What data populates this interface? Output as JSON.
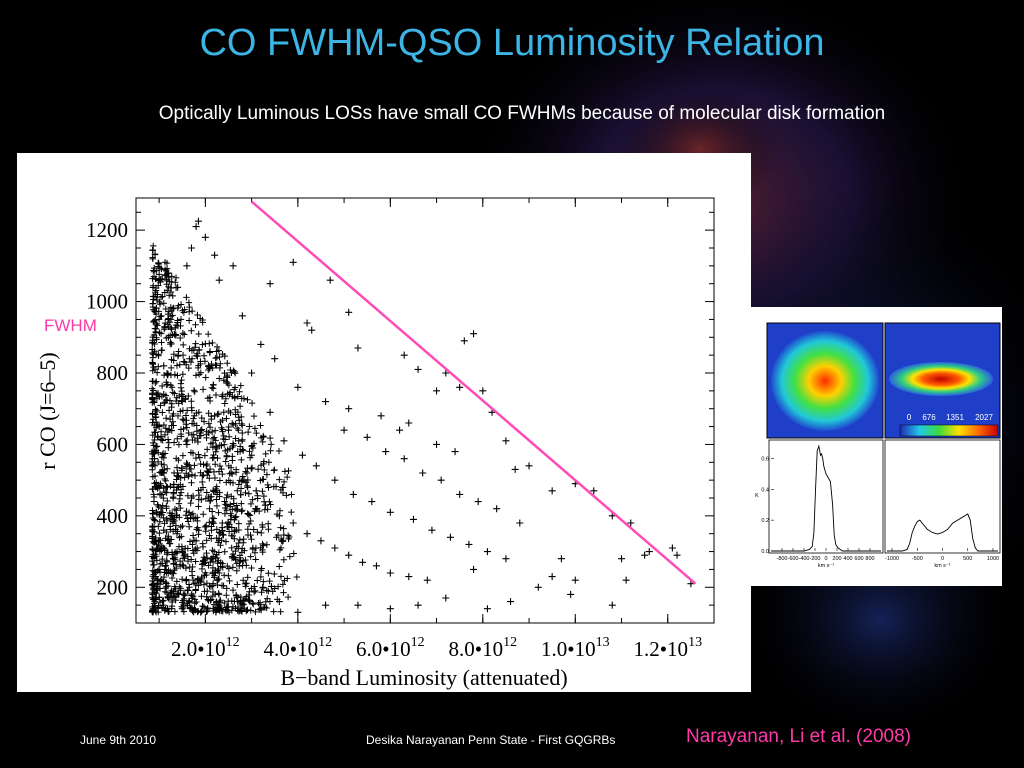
{
  "slide": {
    "title": "CO FWHM-QSO Luminosity Relation",
    "subtitle": "Optically Luminous LOSs have small CO FWHMs because of molecular disk formation",
    "fwhm_label": "FWHM",
    "footer_date": "June 9th 2010",
    "footer_center": "Desika Narayanan   Penn State - First GQGRBs",
    "citation": "Narayanan, Li et al. (2008)"
  },
  "colors": {
    "title": "#3cb4e4",
    "fit_line": "#ff4ab8",
    "citation": "#ff3aa8",
    "background": "#000000"
  },
  "chart_data": [
    {
      "type": "scatter",
      "marker": "+",
      "ylabel": "r CO (J=6–5)",
      "xlabel": "B−band Luminosity (attenuated)",
      "xlim": [
        500000000000.0,
        13000000000000.0
      ],
      "ylim": [
        100,
        1290
      ],
      "x_ticks": [
        {
          "value": 2000000000000.0,
          "mantissa": "2.0•10",
          "exp": "12"
        },
        {
          "value": 4000000000000.0,
          "mantissa": "4.0•10",
          "exp": "12"
        },
        {
          "value": 6000000000000.0,
          "mantissa": "6.0•10",
          "exp": "12"
        },
        {
          "value": 8000000000000.0,
          "mantissa": "8.0•10",
          "exp": "12"
        },
        {
          "value": 10000000000000.0,
          "mantissa": "1.0•10",
          "exp": "13"
        },
        {
          "value": 12000000000000.0,
          "mantissa": "1.2•10",
          "exp": "13"
        }
      ],
      "y_ticks": [
        200,
        400,
        600,
        800,
        1000,
        1200
      ],
      "fit_line": {
        "x": [
          3000000000000.0,
          12600000000000.0
        ],
        "y": [
          1280,
          210
        ]
      },
      "series": [
        {
          "points": [
            [
              1800000000000.0,
              1210
            ],
            [
              1850000000000.0,
              1225
            ],
            [
              1700000000000.0,
              1150
            ],
            [
              2000000000000.0,
              1180
            ],
            [
              1600000000000.0,
              1100
            ],
            [
              2200000000000.0,
              1130
            ],
            [
              2600000000000.0,
              1100
            ],
            [
              3900000000000.0,
              1110
            ],
            [
              4700000000000.0,
              1060
            ],
            [
              3400000000000.0,
              1050
            ],
            [
              2300000000000.0,
              1060
            ],
            [
              5100000000000.0,
              970
            ],
            [
              7800000000000.0,
              910
            ],
            [
              7600000000000.0,
              890
            ],
            [
              6300000000000.0,
              850
            ],
            [
              6600000000000.0,
              810
            ],
            [
              7200000000000.0,
              800
            ],
            [
              4200000000000.0,
              940
            ],
            [
              4300000000000.0,
              920
            ],
            [
              5300000000000.0,
              870
            ],
            [
              6200000000000.0,
              640
            ],
            [
              7000000000000.0,
              750
            ],
            [
              7500000000000.0,
              760
            ],
            [
              8000000000000.0,
              750
            ],
            [
              8200000000000.0,
              690
            ],
            [
              8500000000000.0,
              610
            ],
            [
              9500000000000.0,
              470
            ],
            [
              8700000000000.0,
              530
            ],
            [
              9000000000000.0,
              540
            ],
            [
              10000000000000.0,
              490
            ],
            [
              10400000000000.0,
              470
            ],
            [
              10800000000000.0,
              400
            ],
            [
              11200000000000.0,
              380
            ],
            [
              11600000000000.0,
              300
            ],
            [
              12100000000000.0,
              310
            ],
            [
              12500000000000.0,
              210
            ],
            [
              11500000000000.0,
              290
            ],
            [
              12200000000000.0,
              290
            ],
            [
              11000000000000.0,
              280
            ],
            [
              10800000000000.0,
              150
            ],
            [
              11100000000000.0,
              220
            ],
            [
              9200000000000.0,
              200
            ],
            [
              9500000000000.0,
              230
            ],
            [
              9700000000000.0,
              280
            ],
            [
              10000000000000.0,
              220
            ],
            [
              9900000000000.0,
              180
            ],
            [
              8600000000000.0,
              160
            ],
            [
              8100000000000.0,
              140
            ],
            [
              7800000000000.0,
              250
            ],
            [
              7200000000000.0,
              170
            ],
            [
              6600000000000.0,
              150
            ],
            [
              6000000000000.0,
              140
            ],
            [
              5300000000000.0,
              150
            ],
            [
              4600000000000.0,
              150
            ],
            [
              4000000000000.0,
              130
            ],
            [
              3600000000000.0,
              160
            ],
            [
              3200000000000.0,
              140
            ],
            [
              2700000000000.0,
              160
            ],
            [
              2300000000000.0,
              140
            ],
            [
              1900000000000.0,
              130
            ],
            [
              1500000000000.0,
              140
            ],
            [
              1200000000000.0,
              170
            ],
            [
              1000000000000.0,
              250
            ],
            [
              1100000000000.0,
              360
            ],
            [
              1000000000000.0,
              480
            ],
            [
              900000000000.0,
              560
            ],
            [
              1000000000000.0,
              650
            ],
            [
              1100000000000.0,
              740
            ],
            [
              1100000000000.0,
              820
            ],
            [
              1200000000000.0,
              900
            ],
            [
              1300000000000.0,
              980
            ],
            [
              1400000000000.0,
              1040
            ],
            [
              1200000000000.0,
              1080
            ],
            [
              1500000000000.0,
              720
            ],
            [
              1600000000000.0,
              600
            ],
            [
              1400000000000.0,
              520
            ],
            [
              1700000000000.0,
              450
            ],
            [
              1300000000000.0,
              390
            ],
            [
              1800000000000.0,
              330
            ],
            [
              1500000000000.0,
              300
            ],
            [
              2000000000000.0,
              270
            ],
            [
              2200000000000.0,
              680
            ],
            [
              2400000000000.0,
              780
            ],
            [
              2100000000000.0,
              860
            ],
            [
              2500000000000.0,
              640
            ],
            [
              2700000000000.0,
              580
            ],
            [
              2900000000000.0,
              520
            ],
            [
              3100000000000.0,
              470
            ],
            [
              3300000000000.0,
              430
            ],
            [
              3600000000000.0,
              400
            ],
            [
              3900000000000.0,
              380
            ],
            [
              4200000000000.0,
              350
            ],
            [
              4500000000000.0,
              330
            ],
            [
              4800000000000.0,
              310
            ],
            [
              5100000000000.0,
              290
            ],
            [
              5400000000000.0,
              270
            ],
            [
              5700000000000.0,
              260
            ],
            [
              6000000000000.0,
              240
            ],
            [
              6400000000000.0,
              230
            ],
            [
              6800000000000.0,
              220
            ],
            [
              3000000000000.0,
              800
            ],
            [
              3400000000000.0,
              690
            ],
            [
              3700000000000.0,
              610
            ],
            [
              4100000000000.0,
              570
            ],
            [
              4400000000000.0,
              540
            ],
            [
              4800000000000.0,
              500
            ],
            [
              5200000000000.0,
              460
            ],
            [
              5600000000000.0,
              440
            ],
            [
              6000000000000.0,
              410
            ],
            [
              6500000000000.0,
              390
            ],
            [
              6900000000000.0,
              360
            ],
            [
              7300000000000.0,
              340
            ],
            [
              7700000000000.0,
              320
            ],
            [
              8100000000000.0,
              300
            ],
            [
              8500000000000.0,
              280
            ],
            [
              5000000000000.0,
              640
            ],
            [
              5500000000000.0,
              620
            ],
            [
              5900000000000.0,
              580
            ],
            [
              6300000000000.0,
              560
            ],
            [
              6700000000000.0,
              520
            ],
            [
              7100000000000.0,
              500
            ],
            [
              7500000000000.0,
              460
            ],
            [
              7900000000000.0,
              440
            ],
            [
              8300000000000.0,
              420
            ],
            [
              8800000000000.0,
              380
            ],
            [
              2800000000000.0,
              960
            ],
            [
              3200000000000.0,
              880
            ],
            [
              3500000000000.0,
              840
            ],
            [
              4000000000000.0,
              760
            ],
            [
              4600000000000.0,
              720
            ],
            [
              5100000000000.0,
              700
            ],
            [
              5800000000000.0,
              680
            ],
            [
              6400000000000.0,
              660
            ],
            [
              7000000000000.0,
              600
            ],
            [
              7400000000000.0,
              580
            ]
          ]
        }
      ]
    },
    {
      "type": "line",
      "xlabel": "km s⁻¹",
      "ylabel": "K",
      "xlim": [
        -1000,
        1000
      ],
      "ylim": [
        0,
        0.7
      ],
      "x_ticks": [
        -800,
        -600,
        -400,
        -200,
        0,
        200,
        400,
        600,
        800
      ],
      "y_ticks": [
        0.0,
        0.2,
        0.4,
        0.6
      ],
      "series": [
        {
          "x": [
            -1000,
            -400,
            -300,
            -250,
            -220,
            -190,
            -160,
            -130,
            -100,
            -80,
            -60,
            -40,
            0,
            80,
            120,
            150,
            180,
            220,
            260,
            300,
            400,
            1000
          ],
          "y": [
            0.0,
            0.0,
            0.01,
            0.03,
            0.12,
            0.4,
            0.65,
            0.68,
            0.62,
            0.63,
            0.6,
            0.55,
            0.5,
            0.45,
            0.3,
            0.1,
            0.04,
            0.02,
            0.01,
            0.0,
            0.0,
            0.0
          ]
        }
      ]
    },
    {
      "type": "line",
      "xlabel": "km s⁻¹",
      "x_ticks": [
        -1000,
        -500,
        0,
        500,
        1000
      ],
      "xlim": [
        -1100,
        1100
      ],
      "ylim": [
        0,
        0.7
      ],
      "series": [
        {
          "x": [
            -1100,
            -800,
            -700,
            -650,
            -600,
            -550,
            -500,
            -450,
            -400,
            -300,
            -200,
            -100,
            0,
            100,
            200,
            300,
            400,
            450,
            500,
            550,
            600,
            650,
            700,
            800,
            1100
          ],
          "y": [
            0.0,
            0.0,
            0.01,
            0.05,
            0.12,
            0.16,
            0.19,
            0.2,
            0.18,
            0.14,
            0.12,
            0.11,
            0.12,
            0.14,
            0.18,
            0.2,
            0.22,
            0.23,
            0.24,
            0.2,
            0.08,
            0.02,
            0.0,
            0.0,
            0.0
          ]
        }
      ]
    }
  ],
  "inset": {
    "colorbar_ticks": [
      "0",
      "676",
      "1351",
      "2027"
    ]
  }
}
